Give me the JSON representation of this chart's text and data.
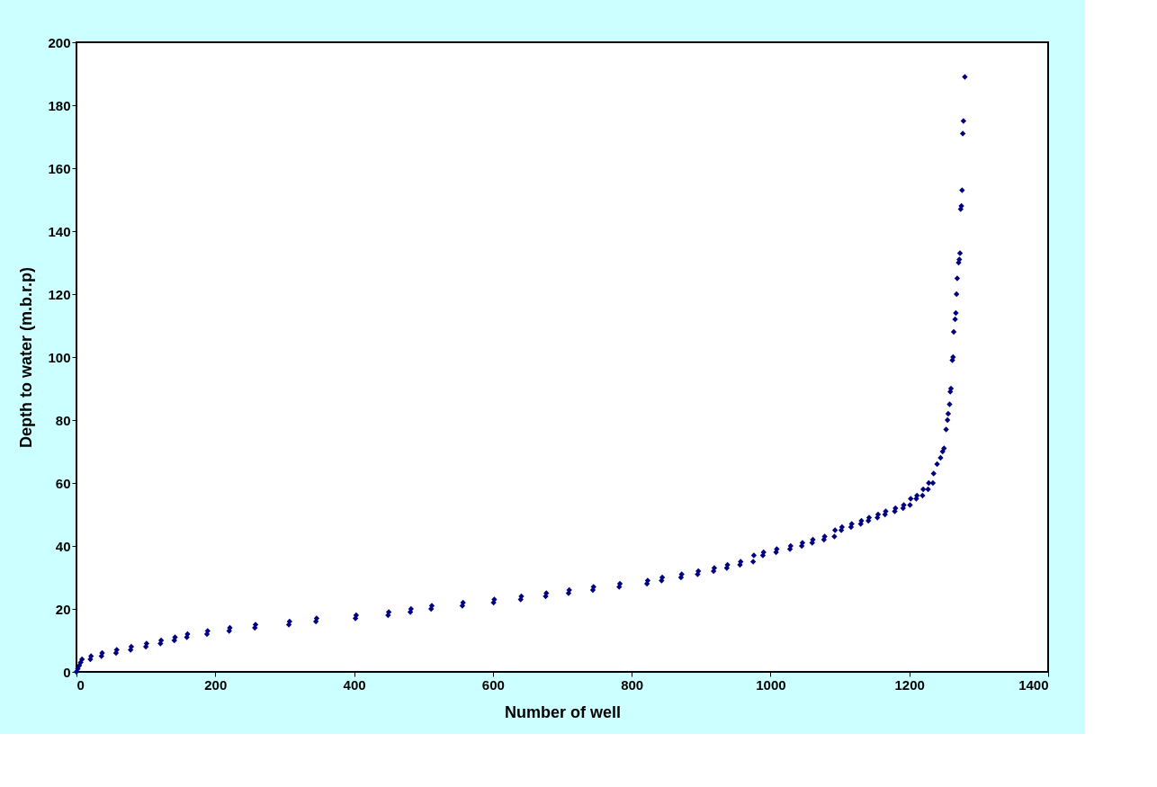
{
  "chart_data": {
    "type": "scatter",
    "xlabel": "Number of well",
    "ylabel": "Depth to water (m.b.r.p)",
    "xlim": [
      0,
      1400
    ],
    "xticks": [
      0,
      200,
      400,
      600,
      800,
      1000,
      1200,
      1400
    ],
    "ylim": [
      0,
      200
    ],
    "yticks": [
      0,
      20,
      40,
      60,
      80,
      100,
      120,
      140,
      160,
      180,
      200
    ],
    "grid": false,
    "marker": "diamond",
    "series": [
      {
        "color": "#000080",
        "x": [
          0,
          2,
          4,
          6,
          8,
          20,
          21,
          36,
          37,
          57,
          58,
          78,
          79,
          100,
          101,
          121,
          122,
          141,
          142,
          159,
          160,
          188,
          189,
          220,
          221,
          257,
          258,
          306,
          307,
          345,
          346,
          402,
          403,
          449,
          450,
          481,
          482,
          511,
          512,
          556,
          557,
          601,
          602,
          640,
          641,
          676,
          677,
          709,
          710,
          744,
          745,
          782,
          783,
          822,
          823,
          843,
          844,
          871,
          872,
          895,
          896,
          918,
          919,
          937,
          938,
          956,
          957,
          975,
          976,
          989,
          990,
          1008,
          1009,
          1028,
          1029,
          1045,
          1046,
          1060,
          1061,
          1077,
          1078,
          1092,
          1093,
          1102,
          1103,
          1116,
          1117,
          1130,
          1131,
          1141,
          1142,
          1154,
          1155,
          1165,
          1166,
          1179,
          1180,
          1191,
          1192,
          1201,
          1202,
          1210,
          1211,
          1219,
          1220,
          1227,
          1228,
          1234,
          1235,
          1240,
          1245,
          1248,
          1250,
          1253,
          1255,
          1256,
          1258,
          1259,
          1260,
          1262,
          1263,
          1264,
          1266,
          1267,
          1268,
          1269,
          1271,
          1272,
          1273,
          1274,
          1275,
          1276,
          1277,
          1278,
          1280
        ],
        "values": [
          0,
          1,
          2,
          3,
          4,
          4,
          5,
          5,
          6,
          6,
          7,
          7,
          8,
          8,
          9,
          9,
          10,
          10,
          11,
          11,
          12,
          12,
          13,
          13,
          14,
          14,
          15,
          15,
          16,
          16,
          17,
          17,
          18,
          18,
          19,
          19,
          20,
          20,
          21,
          21,
          22,
          22,
          23,
          23,
          24,
          24,
          25,
          25,
          26,
          26,
          27,
          27,
          28,
          28,
          29,
          29,
          30,
          30,
          31,
          31,
          32,
          32,
          33,
          33,
          34,
          34,
          35,
          35,
          37,
          37,
          38,
          38,
          39,
          39,
          40,
          40,
          41,
          41,
          42,
          42,
          43,
          43,
          45,
          45,
          46,
          46,
          47,
          47,
          48,
          48,
          49,
          49,
          50,
          50,
          51,
          51,
          52,
          52,
          53,
          53,
          55,
          55,
          56,
          56,
          58,
          58,
          60,
          60,
          63,
          66,
          68,
          70,
          71,
          77,
          80,
          82,
          85,
          89,
          90,
          99,
          100,
          108,
          112,
          114,
          120,
          125,
          130,
          131,
          133,
          147,
          148,
          153,
          171,
          175,
          189
        ]
      }
    ]
  }
}
